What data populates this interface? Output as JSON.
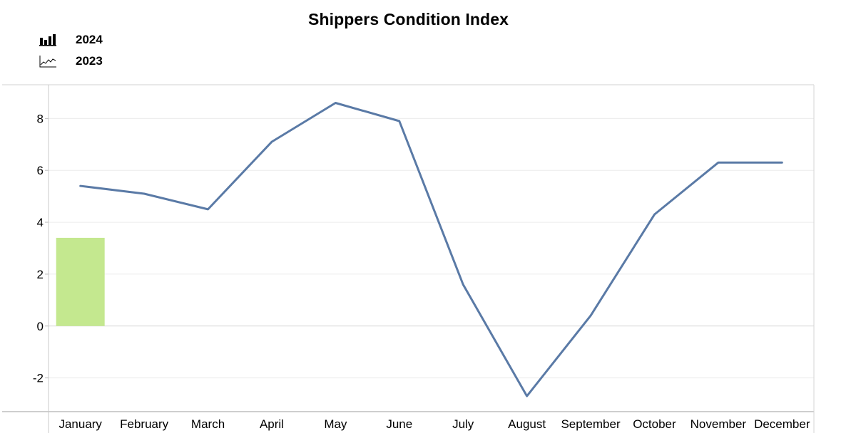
{
  "chart_data": {
    "type": "bar+line",
    "title": "Shippers Condition Index",
    "categories": [
      "January",
      "February",
      "March",
      "April",
      "May",
      "June",
      "July",
      "August",
      "September",
      "October",
      "November",
      "December"
    ],
    "series": [
      {
        "name": "2024",
        "kind": "bar",
        "color": "#c4e88f",
        "values": [
          3.4,
          null,
          null,
          null,
          null,
          null,
          null,
          null,
          null,
          null,
          null,
          null
        ]
      },
      {
        "name": "2023",
        "kind": "line",
        "color": "#5a7aa6",
        "values": [
          5.4,
          5.1,
          4.5,
          7.1,
          8.6,
          7.9,
          1.6,
          -2.7,
          0.4,
          4.3,
          6.3,
          6.3
        ]
      }
    ],
    "y_ticks": [
      "8",
      "6",
      "4",
      "2",
      "0",
      "-2"
    ],
    "ylim": [
      -3.3,
      9.3
    ],
    "xlabel": "",
    "ylabel": "",
    "grid": true,
    "legend_placement": "top-left"
  },
  "legend_icons": {
    "bar": "bar-chart-icon",
    "line": "line-chart-icon"
  }
}
